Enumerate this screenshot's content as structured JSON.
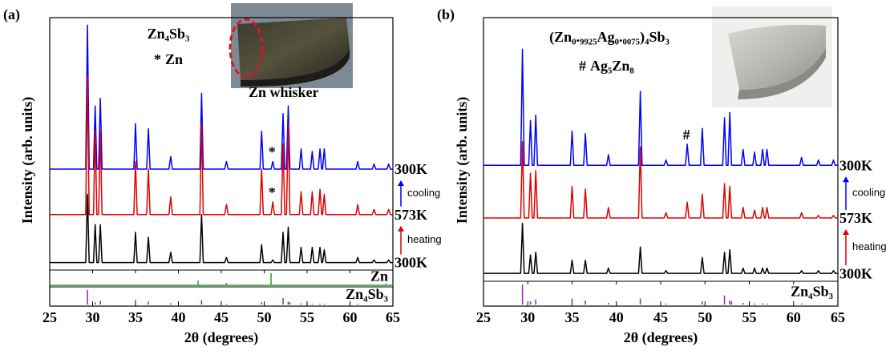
{
  "chart_data": [
    {
      "type": "line",
      "panel_label": "(a)",
      "title": "Zn₄Sb₃",
      "legend": {
        "symbol": "*",
        "label": "Zn",
        "color": "#2e9e2e"
      },
      "photo_caption": "Zn whisker",
      "x_label": "2θ (degrees)",
      "y_label": "Intensity (arb. units)",
      "xlim": [
        25,
        65
      ],
      "xticks": [
        25,
        30,
        35,
        40,
        45,
        50,
        55,
        60,
        65
      ],
      "ylim": [
        0,
        100
      ],
      "x": [
        25,
        29.2,
        29.4,
        29.6,
        30.1,
        30.3,
        30.5,
        30.7,
        30.9,
        31.1,
        34.8,
        35.0,
        35.2,
        36.3,
        36.5,
        36.7,
        38.9,
        39.1,
        39.3,
        42.5,
        42.7,
        42.9,
        45.4,
        45.6,
        45.8,
        49.5,
        49.7,
        49.9,
        50.8,
        51.0,
        51.2,
        52.0,
        52.2,
        52.4,
        52.6,
        52.8,
        53.0,
        54.1,
        54.3,
        54.5,
        55.4,
        55.6,
        55.8,
        56.3,
        56.5,
        56.7,
        56.8,
        57.0,
        57.2,
        60.7,
        60.9,
        61.1,
        62.6,
        62.8,
        63.0,
        64.3,
        64.5,
        64.7,
        65
      ],
      "series": [
        {
          "name": "300K",
          "color": "#0000ff",
          "values": [
            40,
            40,
            97,
            40,
            40,
            65,
            40,
            40,
            68,
            40,
            40,
            58,
            40,
            40,
            56,
            40,
            40,
            45,
            40,
            40,
            70,
            40,
            40,
            43,
            40,
            40,
            55,
            40,
            40,
            43,
            40,
            40,
            62,
            40,
            40,
            65,
            40,
            40,
            48,
            40,
            40,
            47,
            40,
            40,
            48,
            40,
            40,
            48,
            40,
            40,
            43,
            40,
            40,
            42,
            40,
            40,
            42,
            40,
            40
          ]
        },
        {
          "name": "573K",
          "color": "#e00000",
          "values": [
            22,
            22,
            77,
            22,
            22,
            55,
            22,
            22,
            55,
            22,
            22,
            43,
            22,
            22,
            40,
            22,
            22,
            29,
            22,
            22,
            58,
            22,
            22,
            26,
            22,
            22,
            40,
            22,
            22,
            27,
            22,
            22,
            50,
            22,
            22,
            58,
            22,
            22,
            31,
            22,
            22,
            31,
            22,
            22,
            32,
            22,
            22,
            30,
            22,
            22,
            26,
            22,
            22,
            24,
            22,
            22,
            24,
            22,
            22
          ]
        },
        {
          "name": "300K",
          "color": "#000000",
          "values": [
            3,
            3,
            30,
            3,
            3,
            18,
            3,
            3,
            18,
            3,
            3,
            15,
            3,
            3,
            13,
            3,
            3,
            7,
            3,
            3,
            22,
            3,
            3,
            5,
            3,
            3,
            10,
            3,
            3,
            4,
            3,
            3,
            15,
            3,
            3,
            17,
            3,
            3,
            9,
            3,
            3,
            9,
            3,
            3,
            9,
            3,
            3,
            8,
            3,
            3,
            5,
            3,
            3,
            4,
            3,
            3,
            4,
            3,
            3
          ]
        }
      ],
      "arrows": [
        {
          "label": "cooling",
          "color": "#0000ff"
        },
        {
          "label": "heating",
          "color": "#e00000"
        }
      ],
      "markers": [
        {
          "symbol": "*",
          "x": 51.0,
          "series": [
            0,
            1
          ],
          "color": "#2e9e2e"
        }
      ],
      "references": [
        {
          "name": "Zn",
          "color": "#2e9e2e",
          "baseline": true,
          "ylim": [
            0,
            100
          ],
          "x": [
            42.3,
            45.6,
            50.8,
            64.2
          ],
          "values": [
            40,
            20,
            100,
            15
          ]
        },
        {
          "name": "Zn₄Sb₃",
          "color": "#8b2a9b",
          "baseline": false,
          "ylim": [
            0,
            100
          ],
          "x": [
            29.4,
            30.3,
            30.9,
            35.0,
            36.5,
            39.1,
            42.7,
            45.6,
            49.7,
            52.2,
            52.8,
            53.0,
            54.3,
            55.6,
            56.5,
            57.0,
            60.9
          ],
          "values": [
            100,
            15,
            25,
            30,
            20,
            8,
            30,
            5,
            15,
            45,
            20,
            15,
            8,
            5,
            5,
            5,
            5
          ]
        }
      ]
    },
    {
      "type": "line",
      "panel_label": "(b)",
      "title": "(Zn₀.₉₉₂₅Ag₀.₀₀₇₅)₄Sb₃",
      "legend": {
        "symbol": "#",
        "label": "Ag₅Zn₈",
        "color": "#f39c12"
      },
      "x_label": "2θ (degrees)",
      "y_label": "Intensity (arb. units)",
      "xlim": [
        25,
        65
      ],
      "xticks": [
        25,
        30,
        35,
        40,
        45,
        50,
        55,
        60,
        65
      ],
      "ylim": [
        0,
        100
      ],
      "x": [
        25,
        29.2,
        29.4,
        29.6,
        30.1,
        30.3,
        30.5,
        30.7,
        30.9,
        31.1,
        34.8,
        35.0,
        35.2,
        36.3,
        36.5,
        36.7,
        38.9,
        39.1,
        39.3,
        42.5,
        42.7,
        42.9,
        45.4,
        45.6,
        45.8,
        47.8,
        48.0,
        48.2,
        49.5,
        49.7,
        49.9,
        52.0,
        52.2,
        52.4,
        52.6,
        52.8,
        53.0,
        54.1,
        54.3,
        54.5,
        55.4,
        55.6,
        55.8,
        56.3,
        56.5,
        56.7,
        56.8,
        57.0,
        57.2,
        60.7,
        60.9,
        61.1,
        62.6,
        62.8,
        63.0,
        64.3,
        64.5,
        64.7,
        65
      ],
      "series": [
        {
          "name": "300K",
          "color": "#0000ff",
          "values": [
            44,
            44,
            88,
            44,
            44,
            61,
            44,
            44,
            63,
            44,
            44,
            57,
            44,
            44,
            56,
            44,
            44,
            48,
            44,
            44,
            72,
            44,
            44,
            46,
            44,
            44,
            52,
            44,
            44,
            58,
            44,
            44,
            62,
            44,
            44,
            64,
            44,
            44,
            50,
            44,
            44,
            49,
            44,
            44,
            50,
            44,
            44,
            50,
            44,
            44,
            47,
            44,
            44,
            46,
            44,
            44,
            46,
            44,
            44
          ]
        },
        {
          "name": "573K",
          "color": "#e00000",
          "values": [
            24,
            24,
            53,
            24,
            24,
            41,
            24,
            24,
            42,
            24,
            24,
            36,
            24,
            24,
            35,
            24,
            24,
            28,
            24,
            24,
            51,
            24,
            24,
            26,
            24,
            24,
            30,
            24,
            24,
            33,
            24,
            24,
            37,
            24,
            24,
            36,
            24,
            24,
            28,
            24,
            24,
            27,
            24,
            24,
            28,
            24,
            24,
            28,
            24,
            24,
            26,
            24,
            24,
            25,
            24,
            24,
            25,
            24,
            24
          ]
        },
        {
          "name": "300K",
          "color": "#000000",
          "values": [
            3,
            3,
            22,
            3,
            3,
            10,
            3,
            3,
            11,
            3,
            3,
            8,
            3,
            3,
            8,
            3,
            3,
            5,
            3,
            3,
            13,
            3,
            3,
            4,
            3,
            3,
            3,
            3,
            3,
            9,
            3,
            3,
            11,
            3,
            3,
            12,
            3,
            3,
            5,
            3,
            3,
            5,
            3,
            3,
            5,
            3,
            3,
            5,
            3,
            3,
            4,
            3,
            3,
            4,
            3,
            3,
            4,
            3,
            3
          ]
        }
      ],
      "arrows": [
        {
          "label": "cooling",
          "color": "#0000ff"
        },
        {
          "label": "heating",
          "color": "#e00000"
        }
      ],
      "markers": [
        {
          "symbol": "#",
          "x": 48.0,
          "series": [
            0
          ],
          "color": "#f39c12"
        }
      ],
      "references": [
        {
          "name": "Zn₄Sb₃",
          "color": "#8b2a9b",
          "baseline": false,
          "ylim": [
            0,
            100
          ],
          "x": [
            29.4,
            30.3,
            30.9,
            35.0,
            36.5,
            39.1,
            42.7,
            45.6,
            49.7,
            52.2,
            52.8,
            53.0,
            54.3,
            55.6,
            56.5,
            57.0,
            60.9
          ],
          "values": [
            100,
            15,
            25,
            30,
            20,
            8,
            30,
            5,
            15,
            45,
            20,
            15,
            8,
            5,
            5,
            5,
            5
          ]
        }
      ]
    }
  ]
}
